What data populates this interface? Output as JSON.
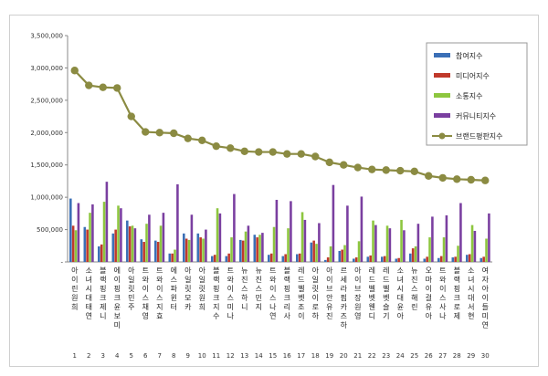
{
  "chart_data": {
    "type": "bar",
    "title": "",
    "xlabel": "",
    "ylabel": "",
    "ylim": [
      0,
      3500000
    ],
    "yticks": [
      0,
      500000,
      1000000,
      1500000,
      2000000,
      2500000,
      3000000,
      3500000
    ],
    "ytick_labels": [
      "-",
      "500,000",
      "1,000,000",
      "1,500,000",
      "2,000,000",
      "2,500,000",
      "3,000,000",
      "3,500,000"
    ],
    "legend_position": "top-right",
    "grid": false,
    "categories": [
      "아이린 원희",
      "소녀시대 태연",
      "블랙핑크 제니",
      "에이핑크 윤보미",
      "아일릿 민주",
      "트와이스 채영",
      "트와이스 지효",
      "에스파 윈터",
      "아일릿 모카",
      "아일릿 원희",
      "블랙핑크 지수",
      "트와이스 미나",
      "뉴진스 하니",
      "뉴진스 민지",
      "트와이스 나연",
      "블랙핑크 리사",
      "레드벨벳 조이",
      "아일릿 이로하",
      "아이브 안유진",
      "르세라핌 카즈하",
      "아이브 장원영",
      "레드벨벳 웬디",
      "레드벨벳 슬기",
      "소녀시대 윤아",
      "뉴진스 해린",
      "오마이걸 유아",
      "트와이스 사나",
      "블랙핑크 로제",
      "소녀시대 서현",
      "여자아이들 미연"
    ],
    "ranks": [
      "1",
      "2",
      "3",
      "4",
      "5",
      "6",
      "7",
      "8",
      "9",
      "10",
      "11",
      "12",
      "13",
      "14",
      "15",
      "16",
      "17",
      "18",
      "19",
      "20",
      "21",
      "22",
      "23",
      "24",
      "25",
      "26",
      "27",
      "28",
      "29",
      "30"
    ],
    "series": [
      {
        "name": "참여지수",
        "kind": "bar",
        "color": "#3b6fb6",
        "values": [
          980000,
          540000,
          240000,
          440000,
          640000,
          350000,
          330000,
          130000,
          440000,
          440000,
          90000,
          90000,
          340000,
          420000,
          110000,
          90000,
          120000,
          300000,
          30000,
          170000,
          50000,
          80000,
          80000,
          50000,
          130000,
          50000,
          60000,
          70000,
          110000,
          60000
        ]
      },
      {
        "name": "미디어지수",
        "kind": "bar",
        "color": "#c0392b",
        "values": [
          560000,
          500000,
          270000,
          500000,
          550000,
          310000,
          310000,
          130000,
          360000,
          380000,
          110000,
          130000,
          330000,
          380000,
          130000,
          120000,
          130000,
          330000,
          70000,
          190000,
          70000,
          100000,
          90000,
          60000,
          210000,
          80000,
          90000,
          80000,
          120000,
          80000
        ]
      },
      {
        "name": "소통지수",
        "kind": "bar",
        "color": "#8dc63f",
        "values": [
          490000,
          760000,
          930000,
          870000,
          560000,
          590000,
          560000,
          190000,
          340000,
          360000,
          830000,
          380000,
          470000,
          420000,
          540000,
          520000,
          770000,
          280000,
          240000,
          260000,
          320000,
          640000,
          560000,
          650000,
          240000,
          380000,
          380000,
          250000,
          570000,
          360000
        ]
      },
      {
        "name": "커뮤니티지수",
        "kind": "bar",
        "color": "#7a3fa0",
        "values": [
          910000,
          890000,
          1240000,
          830000,
          520000,
          730000,
          760000,
          1200000,
          730000,
          500000,
          750000,
          1050000,
          560000,
          450000,
          960000,
          940000,
          650000,
          600000,
          1190000,
          870000,
          1010000,
          570000,
          520000,
          490000,
          590000,
          700000,
          720000,
          910000,
          480000,
          750000
        ]
      },
      {
        "name": "브랜드평판지수",
        "kind": "line",
        "color": "#8b8b42",
        "values": [
          2960000,
          2730000,
          2700000,
          2690000,
          2250000,
          2010000,
          2000000,
          1990000,
          1910000,
          1880000,
          1790000,
          1760000,
          1710000,
          1700000,
          1700000,
          1670000,
          1670000,
          1630000,
          1540000,
          1500000,
          1460000,
          1430000,
          1420000,
          1410000,
          1400000,
          1330000,
          1300000,
          1280000,
          1270000,
          1260000
        ]
      }
    ]
  }
}
